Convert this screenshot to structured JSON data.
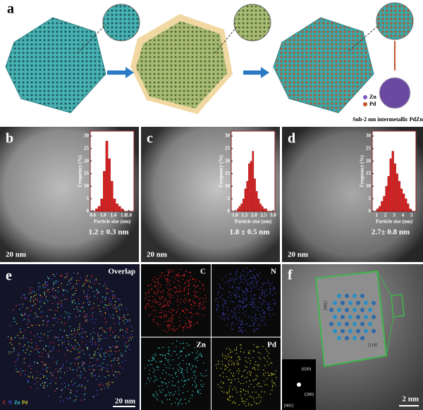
{
  "panel_a": {
    "label": "a",
    "legend": [
      "Zn",
      "Pd"
    ],
    "caption": "Sub-2 nm intermetallic PdZn"
  },
  "panel_labels": [
    "b",
    "c",
    "d",
    "e",
    "f"
  ],
  "scale_bars": [
    "20 nm",
    "20 nm",
    "20 nm",
    "20 nm",
    "2 nm"
  ],
  "panel_e": {
    "maps": [
      "Overlap",
      "C",
      "N",
      "Zn",
      "Pd"
    ],
    "legend": [
      "C",
      "N",
      "Zn",
      "Pd"
    ]
  },
  "panel_f": {
    "directions": [
      "[001]",
      "[110]"
    ],
    "fft_spots": [
      "(020)",
      "(200)"
    ],
    "zone_axis": "[001]"
  },
  "chart_data": [
    {
      "type": "histogram",
      "x_label": "Particle size (nm)",
      "y_label": "Frequency (%)",
      "annotation": "1.2 ± 0.3 nm",
      "color": "#d81e1e",
      "bins": [
        0.7,
        0.8,
        0.9,
        1.0,
        1.1,
        1.2,
        1.3,
        1.4,
        1.5,
        1.6,
        1.7,
        1.8,
        1.9
      ],
      "values": [
        1,
        2,
        5,
        16,
        28,
        21,
        12,
        5,
        3,
        2,
        1,
        0
      ],
      "xlim": [
        0.5,
        2.2
      ],
      "ylim": [
        0,
        32
      ],
      "xticks": [
        {
          "value": 0.6,
          "label": "0.6"
        },
        {
          "value": 1,
          "label": "1.0"
        },
        {
          "value": 1.4,
          "label": "1.4"
        },
        {
          "value": 1.8,
          "label": "1.8"
        },
        {
          "value": 2,
          "label": "2.0"
        }
      ],
      "yticks": [
        0,
        5,
        10,
        15,
        20,
        25,
        30
      ]
    },
    {
      "type": "histogram",
      "x_label": "Particle size (nm)",
      "y_label": "Frequency (%)",
      "annotation": "1.8 ± 0.5 nm",
      "color": "#d81e1e",
      "bins": [
        1.1,
        1.2,
        1.3,
        1.4,
        1.5,
        1.6,
        1.7,
        1.8,
        1.9,
        2.0,
        2.1,
        2.2,
        2.3,
        2.4,
        2.5,
        2.6,
        2.7
      ],
      "values": [
        1,
        2,
        3,
        5,
        9,
        12,
        19,
        20,
        24,
        13,
        8,
        5,
        3,
        2,
        1,
        1
      ],
      "xlim": [
        0.8,
        3.1
      ],
      "ylim": [
        0,
        32
      ],
      "xticks": [
        {
          "value": 1,
          "label": "1.0"
        },
        1.5,
        {
          "value": 2,
          "label": "2.0"
        },
        2.5,
        {
          "value": 3,
          "label": "3.0"
        }
      ],
      "yticks": [
        0,
        5,
        10,
        15,
        20,
        25,
        30
      ]
    },
    {
      "type": "histogram",
      "x_label": "Particle size (nm)",
      "y_label": "Frequency (%)",
      "annotation": "2.7± 0.8 nm",
      "color": "#d81e1e",
      "bins": [
        1.0,
        1.25,
        1.5,
        1.75,
        2.0,
        2.25,
        2.5,
        2.75,
        3.0,
        3.25,
        3.5,
        3.75,
        4.0,
        4.25,
        4.5,
        4.75,
        5.0
      ],
      "values": [
        1,
        2,
        4,
        6,
        10,
        14,
        21,
        24,
        19,
        15,
        12,
        9,
        7,
        5,
        3,
        1
      ],
      "xlim": [
        0.5,
        5.5
      ],
      "ylim": [
        0,
        32
      ],
      "xticks": [
        1,
        2,
        3,
        4,
        5
      ],
      "yticks": [
        0,
        5,
        10,
        15,
        20,
        25,
        30
      ]
    }
  ]
}
